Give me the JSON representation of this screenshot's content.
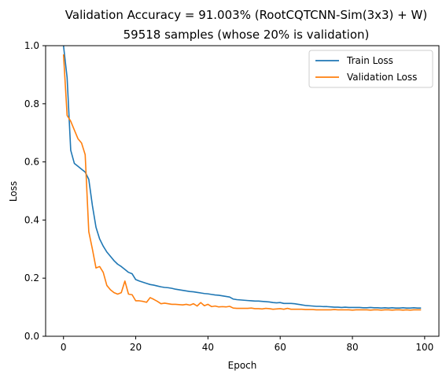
{
  "chart_data": {
    "type": "line",
    "title": "Validation Accuracy = 91.003% (RootCQTCNN-Sim(3x3) + W)",
    "subtitle": "59518 samples (whose 20% is validation)",
    "xlabel": "Epoch",
    "ylabel": "Loss",
    "xlim": [
      -4.95,
      103.95
    ],
    "ylim": [
      0,
      1
    ],
    "xticks": [
      0,
      20,
      40,
      60,
      80,
      100
    ],
    "yticks": [
      0.0,
      0.2,
      0.4,
      0.6,
      0.8,
      1.0
    ],
    "xtick_labels": [
      "0",
      "20",
      "40",
      "60",
      "80",
      "100"
    ],
    "ytick_labels": [
      "0.0",
      "0.2",
      "0.4",
      "0.6",
      "0.8",
      "1.0"
    ],
    "grid": false,
    "legend_position": "top-right",
    "series": [
      {
        "name": "Train Loss",
        "color": "#1f77b4",
        "x": [
          0,
          1,
          2,
          3,
          4,
          5,
          6,
          7,
          8,
          9,
          10,
          11,
          12,
          13,
          14,
          15,
          16,
          17,
          18,
          19,
          20,
          21,
          22,
          23,
          24,
          25,
          26,
          27,
          28,
          29,
          30,
          31,
          32,
          33,
          34,
          35,
          36,
          37,
          38,
          39,
          40,
          41,
          42,
          43,
          44,
          45,
          46,
          47,
          48,
          49,
          50,
          51,
          52,
          53,
          54,
          55,
          56,
          57,
          58,
          59,
          60,
          61,
          62,
          63,
          64,
          65,
          66,
          67,
          68,
          69,
          70,
          71,
          72,
          73,
          74,
          75,
          76,
          77,
          78,
          79,
          80,
          81,
          82,
          83,
          84,
          85,
          86,
          87,
          88,
          89,
          90,
          91,
          92,
          93,
          94,
          95,
          96,
          97,
          98,
          99
        ],
        "y": [
          1.0,
          0.89,
          0.64,
          0.595,
          0.585,
          0.575,
          0.565,
          0.54,
          0.45,
          0.375,
          0.335,
          0.31,
          0.29,
          0.275,
          0.26,
          0.248,
          0.24,
          0.23,
          0.22,
          0.215,
          0.195,
          0.19,
          0.186,
          0.182,
          0.178,
          0.176,
          0.173,
          0.17,
          0.168,
          0.167,
          0.165,
          0.162,
          0.16,
          0.158,
          0.156,
          0.154,
          0.153,
          0.151,
          0.149,
          0.147,
          0.146,
          0.144,
          0.142,
          0.141,
          0.139,
          0.137,
          0.135,
          0.128,
          0.126,
          0.125,
          0.124,
          0.123,
          0.122,
          0.121,
          0.121,
          0.12,
          0.119,
          0.118,
          0.116,
          0.115,
          0.116,
          0.113,
          0.113,
          0.113,
          0.112,
          0.11,
          0.108,
          0.106,
          0.105,
          0.104,
          0.103,
          0.103,
          0.102,
          0.102,
          0.101,
          0.1,
          0.1,
          0.099,
          0.1,
          0.099,
          0.099,
          0.099,
          0.099,
          0.098,
          0.098,
          0.099,
          0.098,
          0.098,
          0.097,
          0.098,
          0.097,
          0.098,
          0.097,
          0.097,
          0.098,
          0.097,
          0.097,
          0.098,
          0.097,
          0.097
        ]
      },
      {
        "name": "Validation Loss",
        "color": "#ff7f0e",
        "x": [
          0,
          1,
          2,
          3,
          4,
          5,
          6,
          7,
          8,
          9,
          10,
          11,
          12,
          13,
          14,
          15,
          16,
          17,
          18,
          19,
          20,
          21,
          22,
          23,
          24,
          25,
          26,
          27,
          28,
          29,
          30,
          31,
          32,
          33,
          34,
          35,
          36,
          37,
          38,
          39,
          40,
          41,
          42,
          43,
          44,
          45,
          46,
          47,
          48,
          49,
          50,
          51,
          52,
          53,
          54,
          55,
          56,
          57,
          58,
          59,
          60,
          61,
          62,
          63,
          64,
          65,
          66,
          67,
          68,
          69,
          70,
          71,
          72,
          73,
          74,
          75,
          76,
          77,
          78,
          79,
          80,
          81,
          82,
          83,
          84,
          85,
          86,
          87,
          88,
          89,
          90,
          91,
          92,
          93,
          94,
          95,
          96,
          97,
          98,
          99
        ],
        "y": [
          0.97,
          0.76,
          0.74,
          0.71,
          0.68,
          0.665,
          0.625,
          0.36,
          0.3,
          0.235,
          0.24,
          0.22,
          0.175,
          0.16,
          0.15,
          0.145,
          0.15,
          0.19,
          0.145,
          0.143,
          0.122,
          0.122,
          0.12,
          0.117,
          0.133,
          0.127,
          0.12,
          0.112,
          0.114,
          0.112,
          0.11,
          0.11,
          0.109,
          0.108,
          0.11,
          0.107,
          0.112,
          0.104,
          0.116,
          0.105,
          0.11,
          0.102,
          0.104,
          0.101,
          0.102,
          0.101,
          0.103,
          0.097,
          0.096,
          0.096,
          0.096,
          0.096,
          0.097,
          0.095,
          0.095,
          0.094,
          0.096,
          0.095,
          0.093,
          0.094,
          0.095,
          0.093,
          0.096,
          0.093,
          0.093,
          0.093,
          0.093,
          0.092,
          0.092,
          0.092,
          0.091,
          0.091,
          0.091,
          0.091,
          0.091,
          0.092,
          0.091,
          0.091,
          0.091,
          0.091,
          0.09,
          0.091,
          0.091,
          0.091,
          0.091,
          0.09,
          0.091,
          0.091,
          0.09,
          0.091,
          0.091,
          0.09,
          0.091,
          0.091,
          0.09,
          0.091,
          0.09,
          0.091,
          0.091,
          0.091
        ]
      }
    ]
  }
}
